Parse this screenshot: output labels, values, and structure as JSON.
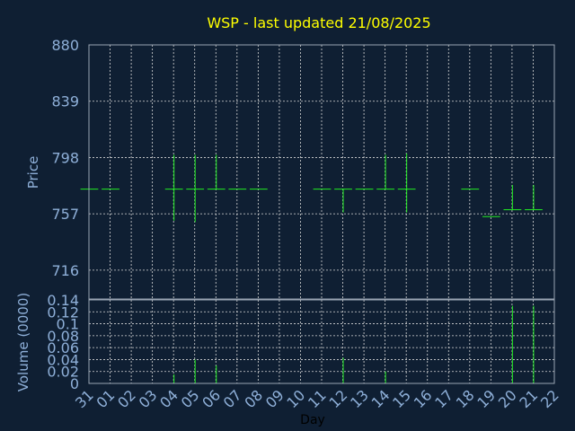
{
  "chart_data": [
    {
      "type": "ohlc",
      "title": "WSP - last updated 21/08/2025",
      "ylabel": "Price",
      "ylim": [
        695,
        880
      ],
      "yticks": [
        880,
        839,
        798,
        757,
        716
      ],
      "x_ticks": [
        "31",
        "01",
        "02",
        "03",
        "04",
        "05",
        "06",
        "07",
        "08",
        "09",
        "10",
        "11",
        "12",
        "13",
        "14",
        "15",
        "16",
        "17",
        "18",
        "19",
        "20",
        "21",
        "22"
      ],
      "grid": true,
      "colors": {
        "bars": "#22ee22",
        "title": "#ffff00",
        "text": "#8fb0d9",
        "background": "#0f1f33"
      },
      "bars": [
        {
          "x": "31",
          "open": 775,
          "high": 775,
          "low": 775,
          "close": 775
        },
        {
          "x": "01",
          "open": 775,
          "high": 775,
          "low": 775,
          "close": 775
        },
        {
          "x": "04",
          "open": 775,
          "high": 800,
          "low": 752,
          "close": 775
        },
        {
          "x": "05",
          "open": 775,
          "high": 800,
          "low": 751,
          "close": 775
        },
        {
          "x": "06",
          "open": 775,
          "high": 800,
          "low": 775,
          "close": 775
        },
        {
          "x": "07",
          "open": 775,
          "high": 775,
          "low": 775,
          "close": 775
        },
        {
          "x": "08",
          "open": 775,
          "high": 775,
          "low": 775,
          "close": 775
        },
        {
          "x": "11",
          "open": 775,
          "high": 775,
          "low": 775,
          "close": 775
        },
        {
          "x": "12",
          "open": 775,
          "high": 775,
          "low": 758,
          "close": 775
        },
        {
          "x": "13",
          "open": 775,
          "high": 775,
          "low": 775,
          "close": 775
        },
        {
          "x": "14",
          "open": 775,
          "high": 800,
          "low": 775,
          "close": 775
        },
        {
          "x": "15",
          "open": 775,
          "high": 801,
          "low": 758,
          "close": 775
        },
        {
          "x": "18",
          "open": 775,
          "high": 775,
          "low": 775,
          "close": 775
        },
        {
          "x": "19",
          "open": 755,
          "high": 755,
          "low": 755,
          "close": 755
        },
        {
          "x": "20",
          "open": 760,
          "high": 778,
          "low": 760,
          "close": 760
        },
        {
          "x": "21",
          "open": 760,
          "high": 778,
          "low": 760,
          "close": 760
        }
      ]
    },
    {
      "type": "bar",
      "ylabel": "Volume (0000)",
      "xlabel": "Day",
      "ylim": [
        0,
        0.14
      ],
      "yticks": [
        "0",
        "0.02",
        "0.04",
        "0.06",
        "0.08",
        "0.1",
        "0.12",
        "0.14"
      ],
      "categories": [
        "31",
        "01",
        "02",
        "03",
        "04",
        "05",
        "06",
        "07",
        "08",
        "09",
        "10",
        "11",
        "12",
        "13",
        "14",
        "15",
        "16",
        "17",
        "18",
        "19",
        "20",
        "21",
        "22"
      ],
      "values": [
        0,
        0,
        0,
        0,
        0.015,
        0.04,
        0.03,
        0,
        0,
        0,
        0,
        0,
        0.043,
        0,
        0.02,
        0,
        0,
        0,
        0,
        0,
        0.13,
        0.13,
        0
      ]
    }
  ]
}
